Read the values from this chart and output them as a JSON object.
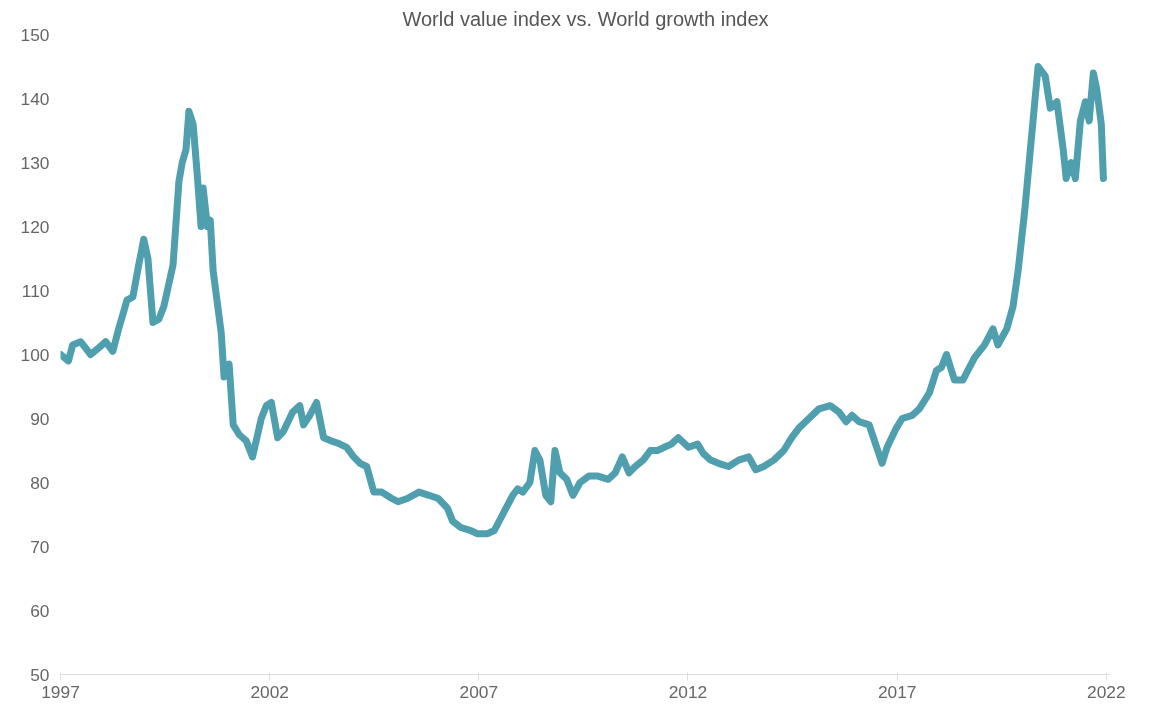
{
  "chart_data": {
    "type": "line",
    "title": "World value index vs. World growth index",
    "x": [
      1997.0,
      1997.19,
      1997.29,
      1997.48,
      1997.72,
      1997.91,
      1998.08,
      1998.25,
      1998.39,
      1998.59,
      1998.73,
      1998.87,
      1998.99,
      1999.09,
      1999.21,
      1999.35,
      1999.47,
      1999.69,
      1999.83,
      1999.91,
      2000.0,
      2000.07,
      2000.17,
      2000.27,
      2000.36,
      2000.41,
      2000.51,
      2000.58,
      2000.65,
      2000.84,
      2000.91,
      2001.03,
      2001.13,
      2001.27,
      2001.44,
      2001.59,
      2001.8,
      2001.92,
      2002.04,
      2002.19,
      2002.33,
      2002.55,
      2002.72,
      2002.81,
      2002.96,
      2003.12,
      2003.29,
      2003.48,
      2003.68,
      2003.84,
      2004.01,
      2004.16,
      2004.32,
      2004.49,
      2004.68,
      2004.92,
      2005.07,
      2005.29,
      2005.57,
      2005.81,
      2006.03,
      2006.25,
      2006.37,
      2006.56,
      2006.8,
      2006.97,
      2007.21,
      2007.37,
      2007.57,
      2007.81,
      2007.93,
      2008.05,
      2008.22,
      2008.34,
      2008.46,
      2008.6,
      2008.72,
      2008.82,
      2008.94,
      2009.1,
      2009.25,
      2009.42,
      2009.63,
      2009.85,
      2010.09,
      2010.26,
      2010.43,
      2010.59,
      2010.74,
      2010.93,
      2011.1,
      2011.27,
      2011.43,
      2011.6,
      2011.77,
      2012.01,
      2012.23,
      2012.37,
      2012.54,
      2012.73,
      2012.97,
      2013.21,
      2013.45,
      2013.62,
      2013.81,
      2014.05,
      2014.29,
      2014.48,
      2014.65,
      2014.89,
      2015.13,
      2015.4,
      2015.61,
      2015.78,
      2015.92,
      2016.09,
      2016.33,
      2016.64,
      2016.76,
      2016.98,
      2017.12,
      2017.36,
      2017.53,
      2017.77,
      2017.94,
      2018.06,
      2018.18,
      2018.25,
      2018.37,
      2018.57,
      2018.85,
      2019.09,
      2019.29,
      2019.41,
      2019.62,
      2019.77,
      2019.89,
      2020.05,
      2020.29,
      2020.37,
      2020.54,
      2020.66,
      2020.82,
      2020.97,
      2021.04,
      2021.16,
      2021.26,
      2021.38,
      2021.5,
      2021.59,
      2021.69,
      2021.77,
      2021.88,
      2021.93
    ],
    "series": [
      {
        "color": "#4f9fae",
        "values": [
          100,
          99,
          101.5,
          102,
          100,
          101,
          102,
          100.5,
          104,
          108.5,
          109,
          114,
          118,
          115,
          105,
          105.5,
          107.5,
          114,
          127,
          130,
          132,
          138,
          136,
          128,
          120,
          126,
          120,
          121,
          113,
          103.5,
          96.5,
          98.5,
          89,
          87.5,
          86.5,
          84,
          90,
          92,
          92.5,
          87,
          88,
          91,
          92,
          89,
          90.5,
          92.5,
          87,
          86.5,
          86,
          85.5,
          84,
          83,
          82.5,
          78.5,
          78.5,
          77.5,
          77,
          77.5,
          78.5,
          78,
          77.5,
          76,
          74,
          73,
          72.5,
          72,
          72,
          72.5,
          75,
          78,
          79,
          78.5,
          80,
          85,
          83.5,
          78,
          77,
          85,
          81.5,
          80.5,
          78,
          80,
          81,
          81,
          80.5,
          81.5,
          84,
          81.5,
          82.5,
          83.5,
          85,
          85,
          85.5,
          86,
          87,
          85.5,
          86,
          84.5,
          83.5,
          83,
          82.5,
          83.5,
          84,
          82,
          82.5,
          83.5,
          85,
          87,
          88.5,
          90,
          91.5,
          92,
          91,
          89.5,
          90.5,
          89.5,
          89,
          83,
          85.5,
          88.5,
          90,
          90.5,
          91.5,
          94,
          97.5,
          98,
          100,
          98.5,
          96,
          96,
          99.5,
          101.5,
          104,
          101.5,
          104,
          107.5,
          113,
          122.5,
          139.5,
          145,
          143.5,
          138.5,
          139.5,
          132,
          127.5,
          130,
          127.5,
          136.5,
          139.5,
          136.5,
          144,
          141.5,
          136,
          127.5
        ]
      }
    ],
    "xlim": [
      1997,
      2022.1
    ],
    "xticks": [
      1997,
      2002,
      2007,
      2012,
      2017,
      2022
    ],
    "ylim": [
      50,
      150
    ],
    "yticks": [
      50,
      60,
      70,
      80,
      90,
      100,
      110,
      120,
      130,
      140,
      150
    ],
    "grid": false,
    "line_style": "solid"
  }
}
